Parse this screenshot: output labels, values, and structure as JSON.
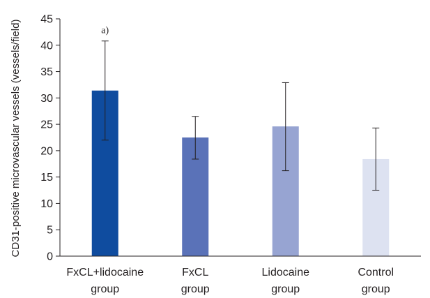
{
  "chart_data": {
    "type": "bar",
    "categories": [
      [
        "FxCL+lidocaine",
        "group"
      ],
      [
        "FxCL",
        "group"
      ],
      [
        "Lidocaine",
        "group"
      ],
      [
        "Control",
        "group"
      ]
    ],
    "values": [
      31.4,
      22.5,
      24.6,
      18.4
    ],
    "error_low": [
      22.0,
      18.4,
      16.2,
      12.5
    ],
    "error_high": [
      40.8,
      26.5,
      32.9,
      24.3
    ],
    "bar_colors": [
      "#0f4c9f",
      "#5a72b8",
      "#97a4d2",
      "#dde2f1"
    ],
    "ylabel": "CD31-positive microvascular vessels (vessels/field)",
    "xlabel": "",
    "ylim": [
      0,
      45
    ],
    "yticks": [
      0,
      5,
      10,
      15,
      20,
      25,
      30,
      35,
      40,
      45
    ],
    "annotations": [
      {
        "category_index": 0,
        "text": "a)"
      }
    ],
    "grid": false,
    "legend": "none"
  }
}
